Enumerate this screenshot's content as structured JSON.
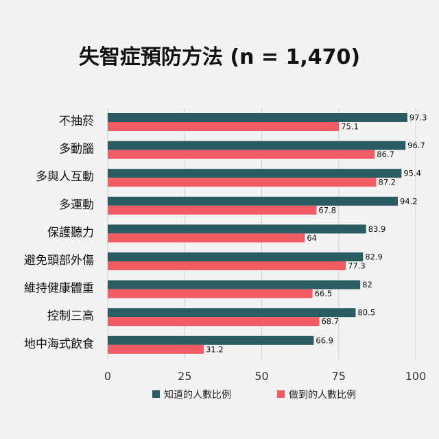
{
  "chart_data": {
    "type": "bar",
    "orientation": "horizontal",
    "title": "失智症預防方法 (n = 1,470)",
    "categories": [
      "不抽菸",
      "多動腦",
      "多與人互動",
      "多運動",
      "保護聽力",
      "避免頭部外傷",
      "維持健康體重",
      "控制三高",
      "地中海式飲食"
    ],
    "series": [
      {
        "name": "知道的人數比例",
        "color": "#2b5c62",
        "values": [
          97.3,
          96.7,
          95.4,
          94.2,
          83.9,
          82.9,
          82,
          80.5,
          66.9
        ]
      },
      {
        "name": "做到的人數比例",
        "color": "#f25c64",
        "values": [
          75.1,
          86.7,
          87.2,
          67.8,
          64,
          77.3,
          66.5,
          68.7,
          31.2
        ]
      }
    ],
    "xlim": [
      0,
      100
    ],
    "xticks": [
      0,
      25,
      50,
      75,
      100
    ],
    "grid": true,
    "legend_position": "bottom"
  }
}
